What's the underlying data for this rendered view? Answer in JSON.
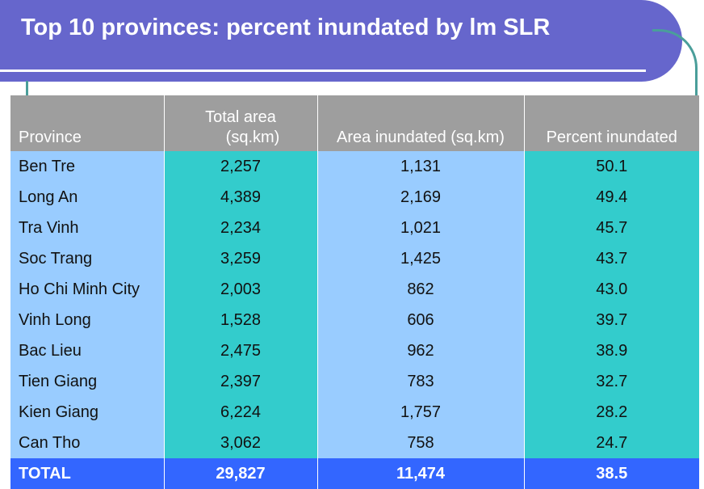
{
  "title": "Top 10 provinces: percent inundated by lm SLR",
  "colors": {
    "banner": "#6666cc",
    "header": "#9e9e9e",
    "light_column": "#99ccff",
    "teal_column": "#33cccc",
    "total_row": "#3366ff"
  },
  "chart_data": {
    "type": "table",
    "columns": [
      "Province",
      "Total area (sq.km)",
      "Area inundated (sq.km)",
      "Percent inundated"
    ],
    "header_lines": {
      "total_area_1": "Total area",
      "total_area_2": "(sq.km)"
    },
    "rows": [
      [
        "Ben Tre",
        "2,257",
        "1,131",
        "50.1"
      ],
      [
        "Long An",
        "4,389",
        "2,169",
        "49.4"
      ],
      [
        "Tra Vinh",
        "2,234",
        "1,021",
        "45.7"
      ],
      [
        "Soc Trang",
        "3,259",
        "1,425",
        "43.7"
      ],
      [
        "Ho Chi Minh City",
        "2,003",
        "862",
        "43.0"
      ],
      [
        "Vinh Long",
        "1,528",
        "606",
        "39.7"
      ],
      [
        "Bac Lieu",
        "2,475",
        "962",
        "38.9"
      ],
      [
        "Tien Giang",
        "2,397",
        "783",
        "32.7"
      ],
      [
        "Kien Giang",
        "6,224",
        "1,757",
        "28.2"
      ],
      [
        "Can Tho",
        "3,062",
        "758",
        "24.7"
      ]
    ],
    "total": [
      "TOTAL",
      "29,827",
      "11,474",
      "38.5"
    ]
  }
}
